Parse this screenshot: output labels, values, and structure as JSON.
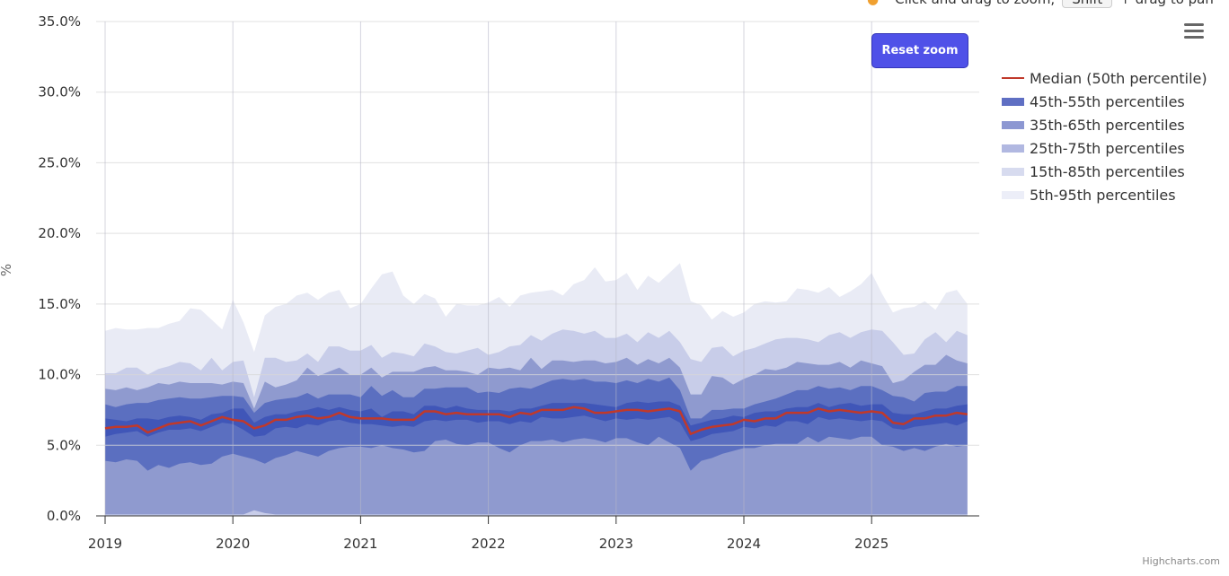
{
  "hint": {
    "text_before": "Click and drag to zoom,",
    "key": "Shift",
    "text_after": "+ drag to pan"
  },
  "reset_zoom_label": "Reset zoom",
  "menu_icon": "hamburger-menu-icon",
  "credit": "Highcharts.com",
  "chart_data": {
    "type": "area",
    "xlabel": "",
    "ylabel": "%",
    "ylim": [
      0,
      35
    ],
    "y_ticks": [
      "0.0%",
      "5.0%",
      "10.0%",
      "15.0%",
      "20.0%",
      "25.0%",
      "30.0%",
      "35.0%"
    ],
    "x_ticks": [
      "2019",
      "2020",
      "2021",
      "2022",
      "2023",
      "2024",
      "2025"
    ],
    "x_start": "2019-01",
    "x_interval": "monthly",
    "grid": true,
    "legend_position": "right",
    "colors": {
      "median": "#c0392b",
      "b45_55": "#4056b8",
      "b35_65": "#5b6fc0",
      "b25_75": "#8f9acf",
      "b15_85": "#c8cde9",
      "b5_95": "#e9ebf5"
    },
    "legend": [
      {
        "label": "Median (50th percentile)",
        "color": "#c0392b",
        "kind": "line"
      },
      {
        "label": "45th-55th percentiles",
        "color": "#5f6fc3",
        "kind": "band"
      },
      {
        "label": "35th-65th percentiles",
        "color": "#8c97d2",
        "kind": "band"
      },
      {
        "label": "25th-75th percentiles",
        "color": "#b1b8e1",
        "kind": "band"
      },
      {
        "label": "15th-85th percentiles",
        "color": "#d7dbef",
        "kind": "band"
      },
      {
        "label": "5th-95th percentiles",
        "color": "#eceef8",
        "kind": "band"
      }
    ],
    "series": {
      "p95": [
        13.1,
        13.3,
        13.2,
        13.2,
        13.3,
        13.3,
        13.6,
        13.8,
        14.7,
        14.6,
        13.9,
        13.2,
        15.3,
        13.7,
        11.6,
        14.2,
        14.8,
        15.0,
        15.6,
        15.8,
        15.3,
        15.8,
        16.0,
        14.7,
        15.0,
        16.1,
        17.1,
        17.3,
        15.6,
        15.0,
        15.7,
        15.4,
        14.1,
        15.0,
        14.9,
        14.9,
        15.1,
        15.5,
        14.8,
        15.6,
        15.8,
        15.9,
        16.0,
        15.6,
        16.4,
        16.7,
        17.6,
        16.6,
        16.7,
        17.2,
        16.0,
        17.0,
        16.5,
        17.2,
        17.9,
        15.2,
        14.9,
        13.9,
        14.5,
        14.1,
        14.4,
        15.0,
        15.2,
        15.1,
        15.2,
        16.1,
        16.0,
        15.8,
        16.2,
        15.5,
        15.9,
        16.4,
        17.2,
        15.7,
        14.4,
        14.7,
        14.8,
        15.2,
        14.6,
        15.8,
        16.0,
        15.0
      ],
      "p85": [
        10.1,
        10.1,
        10.5,
        10.5,
        10.0,
        10.4,
        10.6,
        10.9,
        10.8,
        10.3,
        11.2,
        10.3,
        10.9,
        11.0,
        8.4,
        11.2,
        11.2,
        10.9,
        11.0,
        11.5,
        10.9,
        12.0,
        12.0,
        11.7,
        11.7,
        12.1,
        11.2,
        11.6,
        11.5,
        11.3,
        12.2,
        12.0,
        11.6,
        11.5,
        11.7,
        11.9,
        11.4,
        11.6,
        12.0,
        12.1,
        12.8,
        12.4,
        12.9,
        13.2,
        13.1,
        12.9,
        13.1,
        12.6,
        12.6,
        12.9,
        12.3,
        13.0,
        12.6,
        13.1,
        12.3,
        11.1,
        10.9,
        11.9,
        12.0,
        11.3,
        11.7,
        11.9,
        12.2,
        12.5,
        12.6,
        12.6,
        12.5,
        12.3,
        12.8,
        13.0,
        12.6,
        13.0,
        13.2,
        13.1,
        12.3,
        11.4,
        11.5,
        12.5,
        13.0,
        12.3,
        13.1,
        12.8
      ],
      "p75": [
        9.0,
        8.9,
        9.1,
        8.9,
        9.1,
        9.4,
        9.3,
        9.5,
        9.4,
        9.4,
        9.4,
        9.3,
        9.5,
        9.4,
        7.6,
        9.5,
        9.1,
        9.3,
        9.6,
        10.5,
        9.9,
        10.2,
        10.5,
        10.0,
        10.0,
        10.5,
        9.8,
        10.2,
        10.2,
        10.2,
        10.5,
        10.6,
        10.3,
        10.3,
        10.2,
        10.0,
        10.5,
        10.4,
        10.5,
        10.3,
        11.2,
        10.4,
        11.0,
        11.0,
        10.9,
        11.0,
        11.0,
        10.8,
        10.9,
        11.2,
        10.7,
        11.1,
        10.8,
        11.2,
        10.5,
        8.6,
        8.6,
        9.9,
        9.8,
        9.3,
        9.7,
        10.0,
        10.4,
        10.3,
        10.5,
        10.9,
        10.8,
        10.7,
        10.7,
        10.9,
        10.5,
        11.0,
        10.8,
        10.6,
        9.4,
        9.6,
        10.2,
        10.7,
        10.7,
        11.4,
        11.0,
        10.8
      ],
      "p65": [
        7.9,
        7.7,
        7.9,
        8.0,
        8.0,
        8.2,
        8.3,
        8.4,
        8.3,
        8.3,
        8.4,
        8.5,
        8.5,
        8.4,
        7.3,
        8.0,
        8.2,
        8.3,
        8.4,
        8.7,
        8.3,
        8.6,
        8.6,
        8.6,
        8.4,
        9.2,
        8.5,
        8.9,
        8.4,
        8.4,
        9.0,
        9.0,
        9.1,
        9.1,
        9.1,
        8.7,
        8.8,
        8.7,
        9.0,
        9.1,
        9.0,
        9.3,
        9.6,
        9.7,
        9.6,
        9.7,
        9.5,
        9.5,
        9.4,
        9.6,
        9.4,
        9.7,
        9.5,
        9.8,
        8.9,
        6.9,
        6.9,
        7.5,
        7.5,
        7.6,
        7.6,
        7.9,
        8.1,
        8.3,
        8.6,
        8.9,
        8.9,
        9.2,
        9.0,
        9.1,
        8.9,
        9.2,
        9.2,
        8.9,
        8.5,
        8.4,
        8.1,
        8.7,
        8.8,
        8.8,
        9.2,
        9.2
      ],
      "p55": [
        6.9,
        6.8,
        6.7,
        6.9,
        6.9,
        6.8,
        7.0,
        7.1,
        7.0,
        6.8,
        7.2,
        7.3,
        7.6,
        7.6,
        6.6,
        7.0,
        7.2,
        7.2,
        7.4,
        7.5,
        7.7,
        7.5,
        7.7,
        7.5,
        7.4,
        7.6,
        7.0,
        7.4,
        7.4,
        7.2,
        7.8,
        7.8,
        7.6,
        7.8,
        7.6,
        7.5,
        7.5,
        7.5,
        7.4,
        7.6,
        7.6,
        7.8,
        8.0,
        8.0,
        8.0,
        8.0,
        7.9,
        7.8,
        7.7,
        8.0,
        8.1,
        8.0,
        8.1,
        8.1,
        7.8,
        6.4,
        6.6,
        6.8,
        6.9,
        7.1,
        7.0,
        7.3,
        7.4,
        7.4,
        7.6,
        7.7,
        7.7,
        8.0,
        7.7,
        7.9,
        8.0,
        7.8,
        7.9,
        7.9,
        7.3,
        7.2,
        7.2,
        7.4,
        7.6,
        7.6,
        7.8,
        7.9
      ],
      "p50": [
        6.2,
        6.3,
        6.3,
        6.4,
        5.9,
        6.2,
        6.5,
        6.6,
        6.7,
        6.4,
        6.7,
        7.0,
        6.8,
        6.7,
        6.2,
        6.4,
        6.8,
        6.8,
        7.0,
        7.1,
        6.9,
        7.0,
        7.3,
        7.0,
        6.9,
        6.9,
        6.9,
        6.8,
        6.8,
        6.8,
        7.4,
        7.4,
        7.2,
        7.3,
        7.2,
        7.2,
        7.2,
        7.2,
        7.0,
        7.3,
        7.2,
        7.5,
        7.5,
        7.5,
        7.7,
        7.6,
        7.3,
        7.3,
        7.4,
        7.5,
        7.5,
        7.4,
        7.5,
        7.6,
        7.4,
        5.8,
        6.1,
        6.3,
        6.4,
        6.5,
        6.8,
        6.7,
        6.9,
        6.9,
        7.3,
        7.3,
        7.3,
        7.6,
        7.4,
        7.5,
        7.4,
        7.3,
        7.4,
        7.3,
        6.6,
        6.5,
        6.9,
        6.9,
        7.1,
        7.1,
        7.3,
        7.2
      ],
      "p45": [
        5.6,
        5.8,
        5.9,
        6.0,
        5.6,
        5.9,
        6.1,
        6.1,
        6.2,
        6.0,
        6.3,
        6.6,
        6.5,
        6.1,
        5.6,
        5.7,
        6.2,
        6.3,
        6.2,
        6.5,
        6.4,
        6.7,
        6.8,
        6.6,
        6.5,
        6.5,
        6.4,
        6.3,
        6.4,
        6.3,
        6.7,
        6.8,
        6.7,
        6.8,
        6.8,
        6.6,
        6.7,
        6.7,
        6.5,
        6.7,
        6.6,
        7.0,
        6.9,
        6.9,
        7.0,
        7.1,
        6.9,
        6.7,
        6.9,
        6.8,
        6.9,
        6.8,
        6.9,
        7.0,
        6.6,
        5.3,
        5.5,
        5.8,
        5.9,
        6.0,
        6.3,
        6.2,
        6.4,
        6.3,
        6.7,
        6.7,
        6.5,
        7.0,
        6.8,
        6.9,
        6.8,
        6.7,
        6.8,
        6.7,
        6.2,
        6.1,
        6.3,
        6.4,
        6.5,
        6.6,
        6.4,
        6.7
      ],
      "p35": [
        3.9,
        3.8,
        4.0,
        3.9,
        3.2,
        3.6,
        3.4,
        3.7,
        3.8,
        3.6,
        3.7,
        4.2,
        4.4,
        4.2,
        4.0,
        3.7,
        4.1,
        4.3,
        4.6,
        4.4,
        4.2,
        4.6,
        4.8,
        4.9,
        4.9,
        4.8,
        5.0,
        4.8,
        4.7,
        4.5,
        4.6,
        5.3,
        5.4,
        5.1,
        5.0,
        5.2,
        5.2,
        4.8,
        4.5,
        5.0,
        5.3,
        5.3,
        5.4,
        5.2,
        5.4,
        5.5,
        5.4,
        5.2,
        5.5,
        5.5,
        5.2,
        5.0,
        5.6,
        5.2,
        4.8,
        3.2,
        3.9,
        4.1,
        4.4,
        4.6,
        4.8,
        4.8,
        5.0,
        5.1,
        5.1,
        5.1,
        5.6,
        5.2,
        5.6,
        5.5,
        5.4,
        5.6,
        5.6,
        5.0,
        4.9,
        4.6,
        4.8,
        4.6,
        4.9,
        5.1,
        4.9,
        5.0
      ],
      "p25": [
        0.1,
        0.1,
        0.1,
        0.1,
        0.1,
        0.1,
        0.1,
        0.1,
        0.1,
        0.1,
        0.1,
        0.1,
        0.1,
        0.1,
        0.4,
        0.2,
        0.1,
        0.1,
        0.1,
        0.1,
        0.1,
        0.1,
        0.1,
        0.1,
        0.1,
        0.1,
        0.1,
        0.1,
        0.1,
        0.1,
        0.1,
        0.1,
        0.1,
        0.1,
        0.1,
        0.1,
        0.1,
        0.1,
        0.1,
        0.1,
        0.1,
        0.1,
        0.1,
        0.1,
        0.1,
        0.1,
        0.1,
        0.1,
        0.1,
        0.1,
        0.1,
        0.1,
        0.1,
        0.1,
        0.1,
        0.1,
        0.1,
        0.1,
        0.1,
        0.1,
        0.1,
        0.1,
        0.1,
        0.1,
        0.1,
        0.1,
        0.1,
        0.1,
        0.1,
        0.1,
        0.1,
        0.1,
        0.1,
        0.1,
        0.1,
        0.1,
        0.1,
        0.1,
        0.1,
        0.1,
        0.1,
        0.1
      ],
      "p15": [
        0,
        0,
        0,
        0,
        0,
        0,
        0,
        0,
        0,
        0,
        0,
        0,
        0,
        0,
        0,
        0,
        0,
        0,
        0,
        0,
        0,
        0,
        0,
        0,
        0,
        0,
        0,
        0,
        0,
        0,
        0,
        0,
        0,
        0,
        0,
        0,
        0,
        0,
        0,
        0,
        0,
        0,
        0,
        0,
        0,
        0,
        0,
        0,
        0,
        0,
        0,
        0,
        0,
        0,
        0,
        0,
        0,
        0,
        0,
        0,
        0,
        0,
        0,
        0,
        0,
        0,
        0,
        0,
        0,
        0,
        0,
        0,
        0,
        0,
        0,
        0,
        0,
        0,
        0,
        0,
        0,
        0
      ],
      "p5": [
        0,
        0,
        0,
        0,
        0,
        0,
        0,
        0,
        0,
        0,
        0,
        0,
        0,
        0,
        0,
        0,
        0,
        0,
        0,
        0,
        0,
        0,
        0,
        0,
        0,
        0,
        0,
        0,
        0,
        0,
        0,
        0,
        0,
        0,
        0,
        0,
        0,
        0,
        0,
        0,
        0,
        0,
        0,
        0,
        0,
        0,
        0,
        0,
        0,
        0,
        0,
        0,
        0,
        0,
        0,
        0,
        0,
        0,
        0,
        0,
        0,
        0,
        0,
        0,
        0,
        0,
        0,
        0,
        0,
        0,
        0,
        0,
        0,
        0,
        0,
        0,
        0,
        0,
        0,
        0,
        0,
        0
      ]
    }
  }
}
